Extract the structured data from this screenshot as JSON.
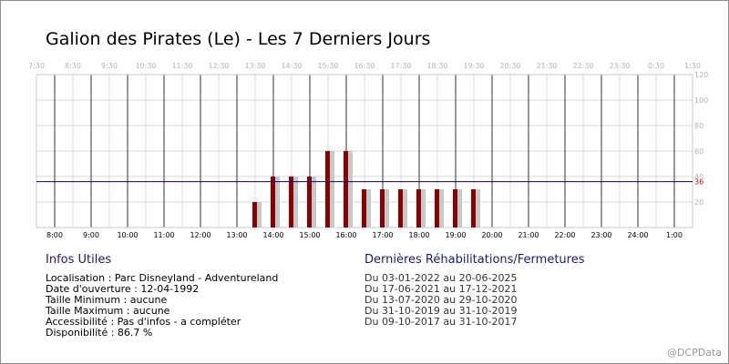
{
  "title": "Galion des Pirates (Le) - Les 7 Derniers Jours",
  "info": {
    "heading": "Infos Utiles",
    "lines": [
      "Localisation : Parc Disneyland - Adventureland",
      "Date d'ouverture : 12-04-1992",
      "Taille Minimum : aucune",
      "Taille Maximum : aucune",
      "Accessibilité : Pas d'infos - a compléter",
      "Disponibilité : 86.7 %"
    ]
  },
  "rehab": {
    "heading": "Dernières Réhabilitations/Fermetures",
    "lines": [
      "Du 03-01-2022 au 20-06-2025",
      "Du 17-06-2021 au 17-12-2021",
      "Du 13-07-2020 au 29-10-2020",
      "Du 31-10-2019 au 31-10-2019",
      "Du 09-10-2017 au 31-10-2017"
    ]
  },
  "watermark": "@DCPData",
  "chart_data": {
    "type": "bar",
    "top_ticks": [
      "7:30",
      "8:30",
      "9:30",
      "10:30",
      "11:30",
      "12:30",
      "13:30",
      "14:30",
      "15:30",
      "16:30",
      "17:30",
      "18:30",
      "19:30",
      "20:30",
      "21:30",
      "22:30",
      "23:30",
      "0:30",
      "1:30"
    ],
    "bottom_ticks": [
      "8:00",
      "9:00",
      "10:00",
      "11:00",
      "12:00",
      "13:00",
      "14:00",
      "15:00",
      "16:00",
      "17:00",
      "18:00",
      "19:00",
      "20:00",
      "21:00",
      "22:00",
      "23:00",
      "24:00",
      "1:00"
    ],
    "y_ticks": [
      20,
      40,
      60,
      80,
      100,
      120
    ],
    "ylim": [
      0,
      120
    ],
    "x_range_hours": [
      7.5,
      25.5
    ],
    "bars": [
      {
        "time": 13.5,
        "value": 20
      },
      {
        "time": 14.0,
        "value": 40
      },
      {
        "time": 14.5,
        "value": 40
      },
      {
        "time": 15.0,
        "value": 40
      },
      {
        "time": 15.5,
        "value": 60
      },
      {
        "time": 16.0,
        "value": 60
      },
      {
        "time": 16.5,
        "value": 30
      },
      {
        "time": 17.0,
        "value": 30
      },
      {
        "time": 17.5,
        "value": 30
      },
      {
        "time": 18.0,
        "value": 30
      },
      {
        "time": 18.5,
        "value": 30
      },
      {
        "time": 19.0,
        "value": 30
      },
      {
        "time": 19.5,
        "value": 30
      }
    ],
    "average_label": "36",
    "average": 36,
    "bar_color": "#8b0000",
    "shadow_color": "#c8c8c8",
    "average_color": "#00007f",
    "average_label_color": "#cc0000"
  }
}
